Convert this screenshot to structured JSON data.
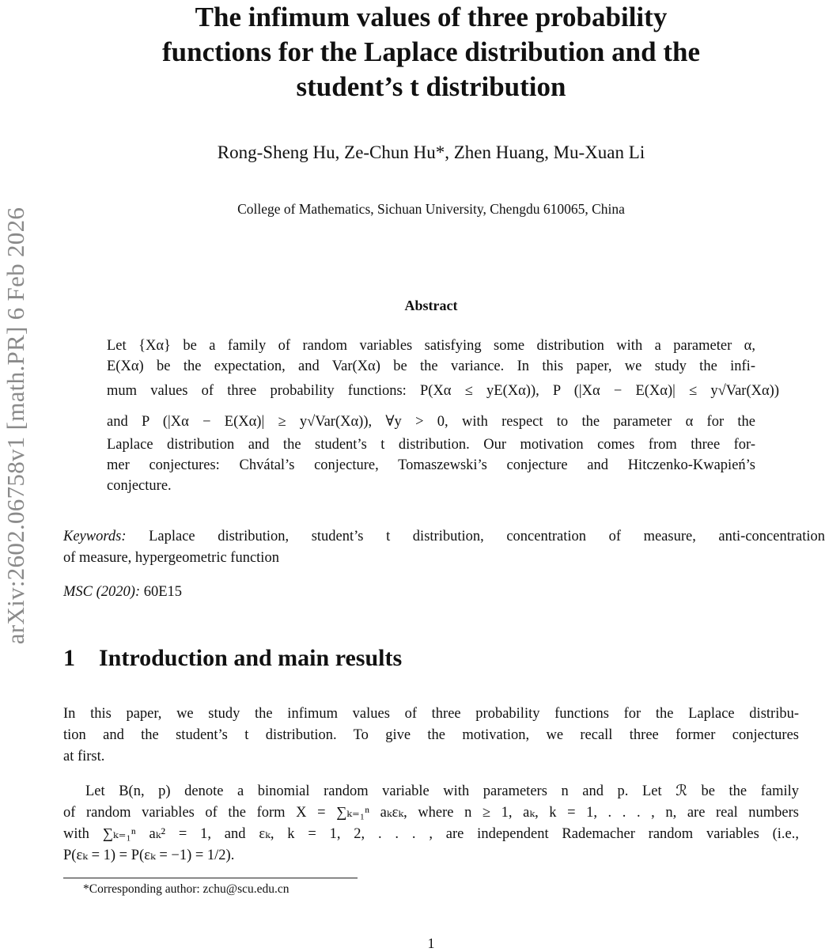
{
  "sidebar_stamp": "arXiv:2602.06758v1  [math.PR]  6 Feb 2026",
  "title_lines": [
    "The infimum values of three probability",
    "functions for the Laplace distribution and the",
    "student’s t distribution"
  ],
  "authors": "Rong-Sheng Hu, Ze-Chun Hu*, Zhen Huang, Mu-Xuan Li",
  "affiliation": "College of Mathematics, Sichuan University, Chengdu 610065, China",
  "abstract": {
    "heading": "Abstract",
    "lines": [
      "Let {Xα} be a family of random variables satisfying some distribution with a parameter α,",
      "E(Xα) be the expectation, and Var(Xα) be the variance. In this paper, we study the infi-",
      "mum values of three probability functions: P(Xα ≤ yE(Xα)), P (|Xα − E(Xα)| ≤ y√Var(Xα))",
      "and P (|Xα − E(Xα)| ≥ y√Var(Xα)), ∀y > 0, with respect to the parameter α for the",
      "Laplace distribution and the student’s t distribution. Our motivation comes from three for-",
      "mer conjectures: Chvátal’s conjecture, Tomaszewski’s conjecture and Hitczenko-Kwapień’s",
      "conjecture."
    ]
  },
  "keywords": {
    "label": "Keywords:",
    "line1": "Laplace distribution, student’s t distribution, concentration of measure, anti-concentration",
    "line2": "of measure, hypergeometric function"
  },
  "msc": {
    "label": "MSC (2020):",
    "value": "60E15"
  },
  "section": {
    "number": "1",
    "title": "Introduction and main results"
  },
  "intro_para1": [
    "In this paper, we study the infimum values of three probability functions for the Laplace distribu-",
    "tion and the student’s t distribution. To give the motivation, we recall three former conjectures",
    "at first."
  ],
  "intro_para2": [
    "Let B(n, p) denote a binomial random variable with parameters n and p. Let ℛ be the family",
    "of random variables of the form X = ∑ₖ₌₁ⁿ aₖεₖ, where n ≥ 1, aₖ, k = 1, . . . , n, are real numbers",
    "with ∑ₖ₌₁ⁿ aₖ² = 1, and εₖ, k = 1, 2, . . . , are independent Rademacher random variables (i.e.,",
    "P(εₖ = 1) = P(εₖ = −1) = 1/2)."
  ],
  "footnote": "*Corresponding author: zchu@scu.edu.cn",
  "page_number": "1"
}
